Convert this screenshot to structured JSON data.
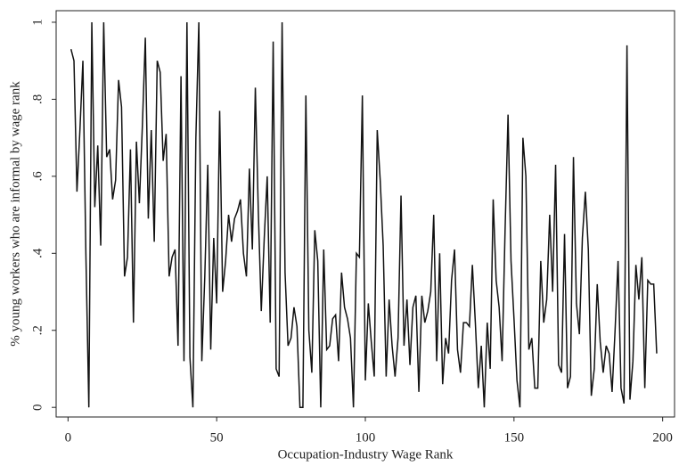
{
  "chart_data": {
    "type": "line",
    "x_label": "Occupation-Industry Wage Rank",
    "y_label": "% young workers who are informal by wage rank",
    "x": [
      1,
      2,
      3,
      4,
      5,
      6,
      7,
      8,
      9,
      10,
      11,
      12,
      13,
      14,
      15,
      16,
      17,
      18,
      19,
      20,
      21,
      22,
      23,
      24,
      25,
      26,
      27,
      28,
      29,
      30,
      31,
      32,
      33,
      34,
      35,
      36,
      37,
      38,
      39,
      40,
      41,
      42,
      43,
      44,
      45,
      46,
      47,
      48,
      49,
      50,
      51,
      52,
      53,
      54,
      55,
      56,
      57,
      58,
      59,
      60,
      61,
      62,
      63,
      64,
      65,
      66,
      67,
      68,
      69,
      70,
      71,
      72,
      73,
      74,
      75,
      76,
      77,
      78,
      79,
      80,
      81,
      82,
      83,
      84,
      85,
      86,
      87,
      88,
      89,
      90,
      91,
      92,
      93,
      94,
      95,
      96,
      97,
      98,
      99,
      100,
      101,
      102,
      103,
      104,
      105,
      106,
      107,
      108,
      109,
      110,
      111,
      112,
      113,
      114,
      115,
      116,
      117,
      118,
      119,
      120,
      121,
      122,
      123,
      124,
      125,
      126,
      127,
      128,
      129,
      130,
      131,
      132,
      133,
      134,
      135,
      136,
      137,
      138,
      139,
      140,
      141,
      142,
      143,
      144,
      145,
      146,
      147,
      148,
      149,
      150,
      151,
      152,
      153,
      154,
      155,
      156,
      157,
      158,
      159,
      160,
      161,
      162,
      163,
      164,
      165,
      166,
      167,
      168,
      169,
      170,
      171,
      172,
      173,
      174,
      175,
      176,
      177,
      178,
      179,
      180,
      181,
      182,
      183,
      184,
      185,
      186,
      187,
      188,
      189,
      190,
      191,
      192,
      193,
      194,
      195,
      196,
      197,
      198
    ],
    "series": [
      {
        "color": "#111111",
        "values": [
          0.93,
          0.9,
          0.56,
          0.72,
          0.9,
          0.4,
          0.0,
          1.0,
          0.52,
          0.68,
          0.42,
          1.0,
          0.65,
          0.67,
          0.54,
          0.59,
          0.85,
          0.78,
          0.34,
          0.39,
          0.67,
          0.22,
          0.69,
          0.53,
          0.73,
          0.96,
          0.49,
          0.72,
          0.43,
          0.9,
          0.87,
          0.64,
          0.71,
          0.34,
          0.39,
          0.41,
          0.16,
          0.86,
          0.12,
          1.0,
          0.13,
          0.0,
          0.7,
          1.0,
          0.12,
          0.34,
          0.63,
          0.15,
          0.44,
          0.27,
          0.77,
          0.3,
          0.38,
          0.5,
          0.43,
          0.49,
          0.51,
          0.54,
          0.4,
          0.34,
          0.62,
          0.41,
          0.83,
          0.51,
          0.25,
          0.44,
          0.6,
          0.22,
          0.95,
          0.1,
          0.08,
          1.0,
          0.35,
          0.16,
          0.18,
          0.26,
          0.21,
          0.0,
          0.0,
          0.81,
          0.2,
          0.09,
          0.46,
          0.38,
          0.0,
          0.41,
          0.15,
          0.16,
          0.23,
          0.24,
          0.12,
          0.35,
          0.26,
          0.23,
          0.18,
          0.0,
          0.4,
          0.39,
          0.81,
          0.07,
          0.27,
          0.17,
          0.08,
          0.72,
          0.59,
          0.42,
          0.08,
          0.28,
          0.16,
          0.08,
          0.18,
          0.55,
          0.16,
          0.28,
          0.11,
          0.26,
          0.29,
          0.04,
          0.29,
          0.22,
          0.25,
          0.3,
          0.5,
          0.12,
          0.4,
          0.06,
          0.18,
          0.14,
          0.33,
          0.41,
          0.15,
          0.09,
          0.22,
          0.22,
          0.21,
          0.37,
          0.22,
          0.05,
          0.16,
          0.0,
          0.22,
          0.1,
          0.54,
          0.33,
          0.26,
          0.12,
          0.46,
          0.76,
          0.38,
          0.23,
          0.07,
          0.0,
          0.7,
          0.6,
          0.15,
          0.18,
          0.05,
          0.05,
          0.38,
          0.22,
          0.28,
          0.5,
          0.3,
          0.63,
          0.11,
          0.09,
          0.45,
          0.05,
          0.08,
          0.65,
          0.27,
          0.19,
          0.44,
          0.56,
          0.41,
          0.03,
          0.1,
          0.32,
          0.17,
          0.09,
          0.16,
          0.14,
          0.04,
          0.2,
          0.38,
          0.05,
          0.01,
          0.94,
          0.02,
          0.12,
          0.37,
          0.28,
          0.39,
          0.05,
          0.33,
          0.32,
          0.32,
          0.14
        ]
      }
    ],
    "xlim": [
      -4,
      204
    ],
    "ylim": [
      -0.025,
      1.03
    ],
    "xticks": [
      0,
      50,
      100,
      150,
      200
    ],
    "yticks": [
      0,
      {
        "value": 0.2,
        "label": ".2"
      },
      {
        "value": 0.4,
        "label": ".4"
      },
      {
        "value": 0.6,
        "label": ".6"
      },
      {
        "value": 0.8,
        "label": ".8"
      },
      1
    ]
  }
}
